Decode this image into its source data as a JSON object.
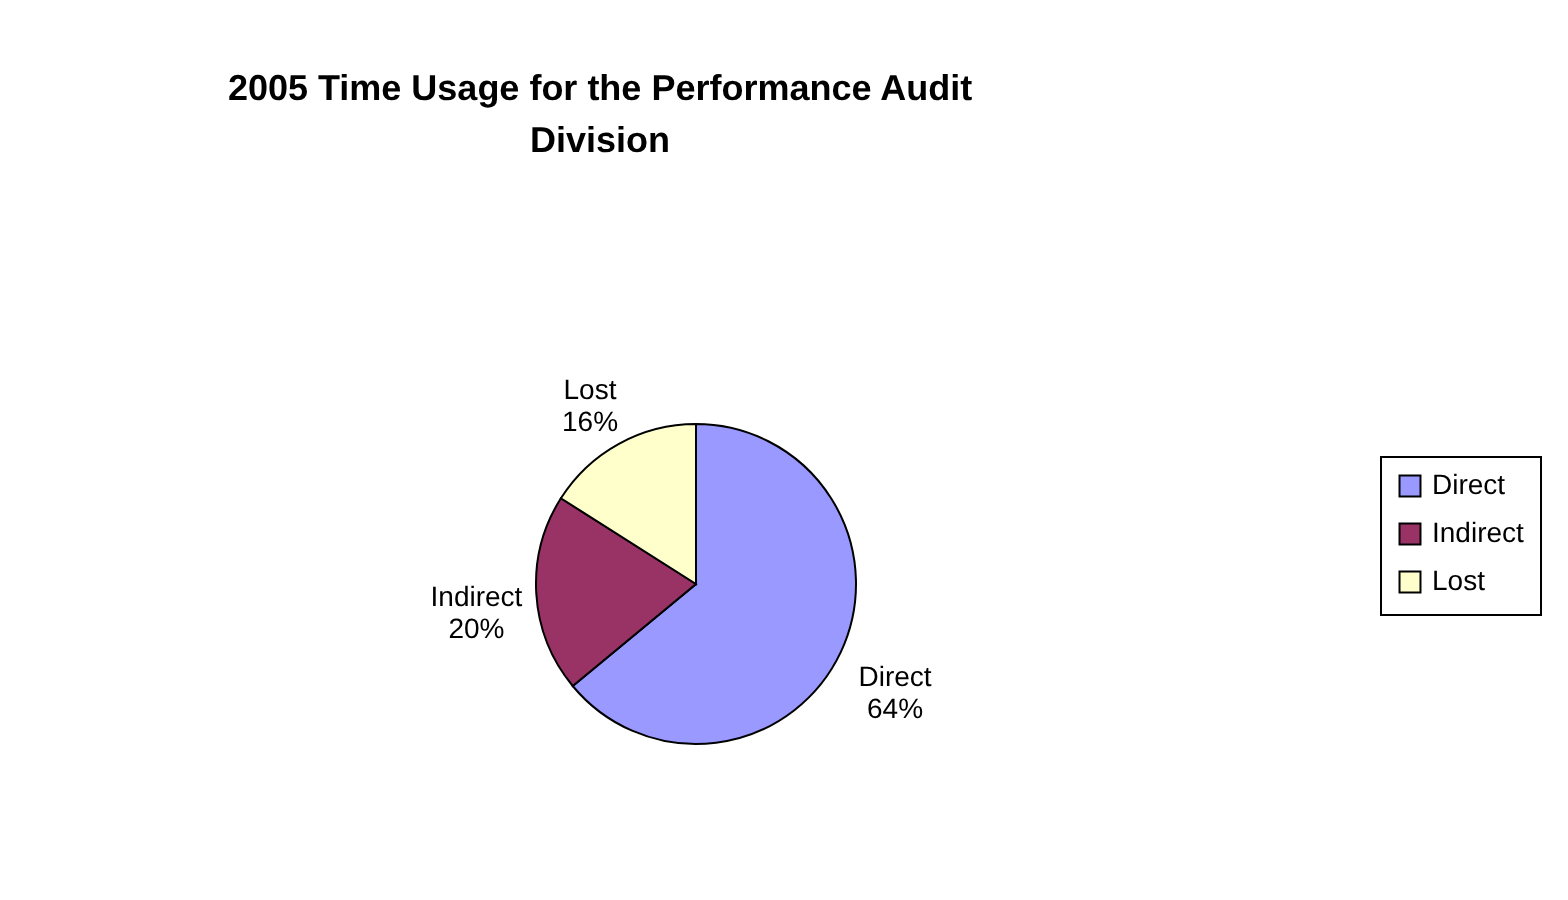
{
  "chart_data": {
    "type": "pie",
    "title": "2005 Time Usage for the Performance Audit Division",
    "categories": [
      "Direct",
      "Indirect",
      "Lost"
    ],
    "values": [
      64,
      20,
      16
    ],
    "value_labels": [
      "64%",
      "20%",
      "16%"
    ],
    "colors": [
      "#9999ff",
      "#993366",
      "#ffffcc"
    ],
    "legend": "right"
  }
}
